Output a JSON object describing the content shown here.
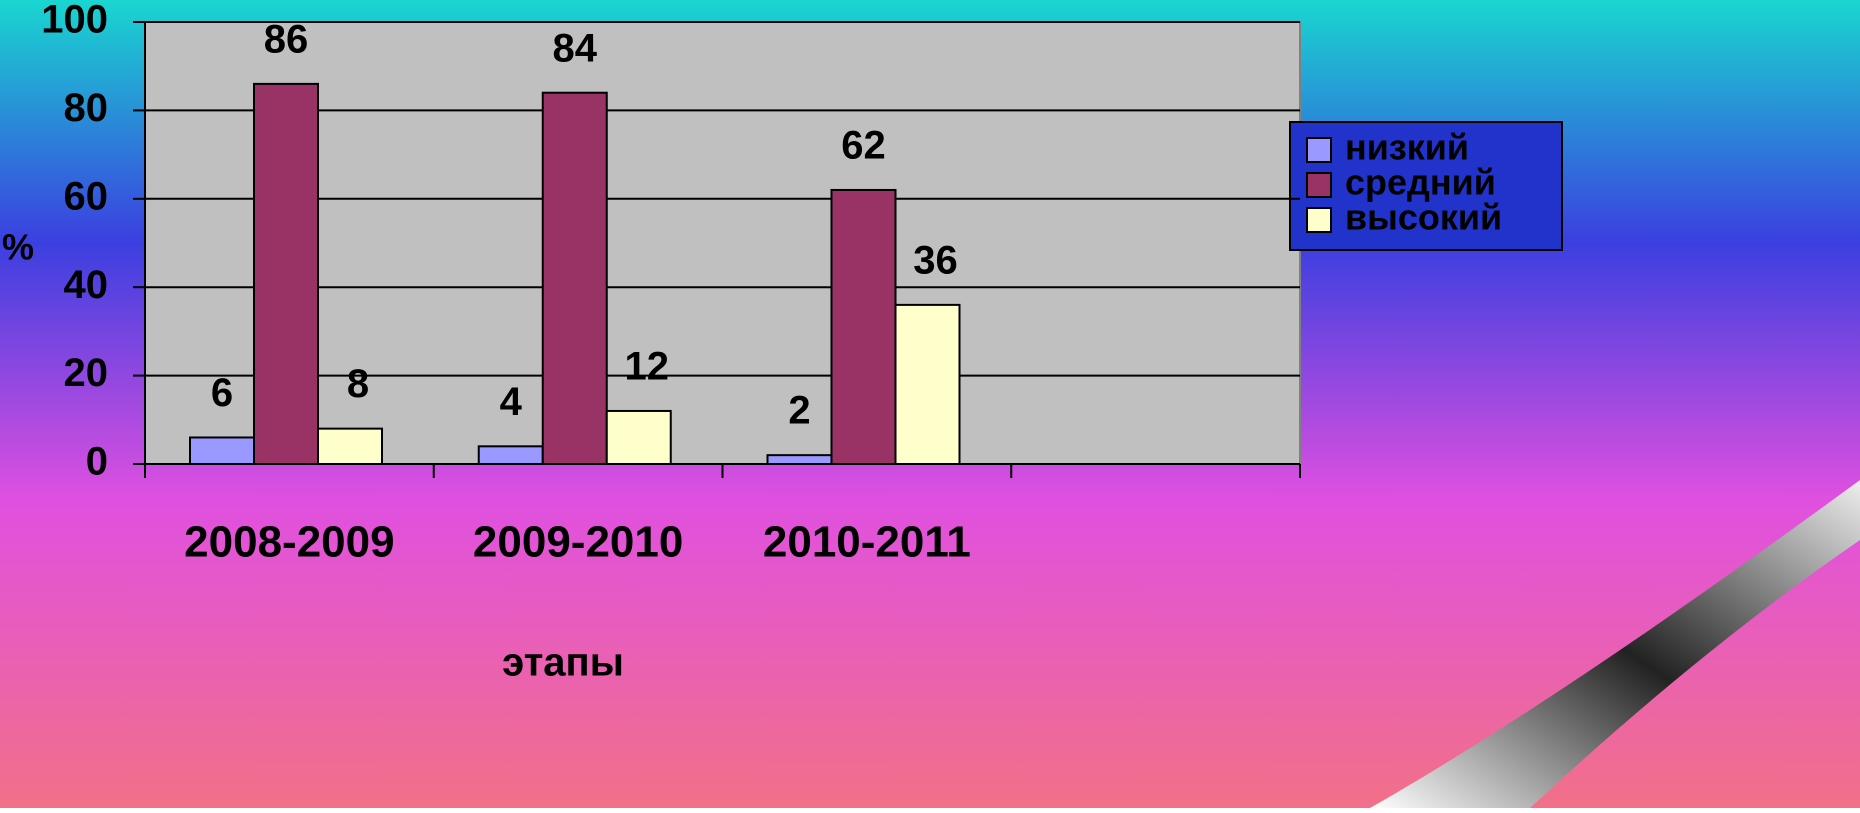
{
  "chart_data": {
    "type": "bar",
    "x_label": "этапы",
    "y_label": "%",
    "categories": [
      "2008-2009",
      "2009-2010",
      "2010-2011",
      null
    ],
    "series": [
      {
        "name": "низкий",
        "color": "#9999ff",
        "values": [
          6,
          4,
          2,
          null
        ]
      },
      {
        "name": "средний",
        "color": "#993366",
        "values": [
          86,
          84,
          62,
          null
        ]
      },
      {
        "name": "высокий",
        "color": "#ffffcc",
        "values": [
          8,
          12,
          36,
          null
        ]
      }
    ],
    "ylim": [
      0,
      100
    ],
    "yticks": [
      0,
      20,
      40,
      60,
      80,
      100
    ],
    "grid": true,
    "legend": "right"
  }
}
